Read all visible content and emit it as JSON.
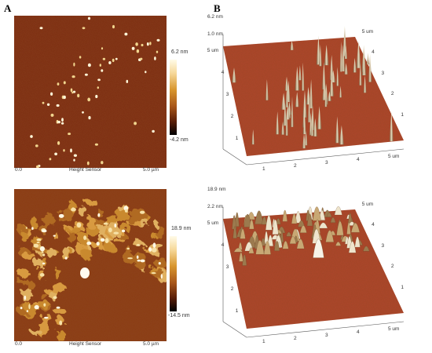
{
  "panel_labels": {
    "a": "A",
    "b": "B"
  },
  "top_2d": {
    "scale_max": "6.2 nm",
    "scale_min": "-4.2 nm",
    "x_start": "0.0",
    "x_title": "Height Sensor",
    "x_end": "5.0 µm"
  },
  "bottom_2d": {
    "scale_max": "18.9 nm",
    "scale_min": "-14.5 nm",
    "x_start": "0.0",
    "x_title": "Height Sensor",
    "x_end": "5.0 µm"
  },
  "top_3d": {
    "z_max": "6.2 nm",
    "z_tick": "1.0 nm",
    "um_label": "um",
    "left_ticks": [
      "5 um",
      "4",
      "3",
      "2",
      "1"
    ],
    "right_ticks": [
      "5 um",
      "4",
      "3",
      "2",
      "1"
    ],
    "bottom_ticks": [
      "1",
      "2",
      "3",
      "4",
      "5 um"
    ]
  },
  "bottom_3d": {
    "z_max": "18.9 nm",
    "z_tick": "2.2 nm",
    "left_ticks": [
      "5 um",
      "4",
      "3",
      "2",
      "1"
    ],
    "right_ticks": [
      "5 um",
      "4",
      "3",
      "2",
      "1"
    ],
    "bottom_ticks": [
      "1",
      "2",
      "3",
      "4",
      "5 um"
    ]
  },
  "colors": {
    "substrate": "#7a2a0e",
    "highlight": "#fff6d8",
    "surface3d": "#b0462a"
  }
}
